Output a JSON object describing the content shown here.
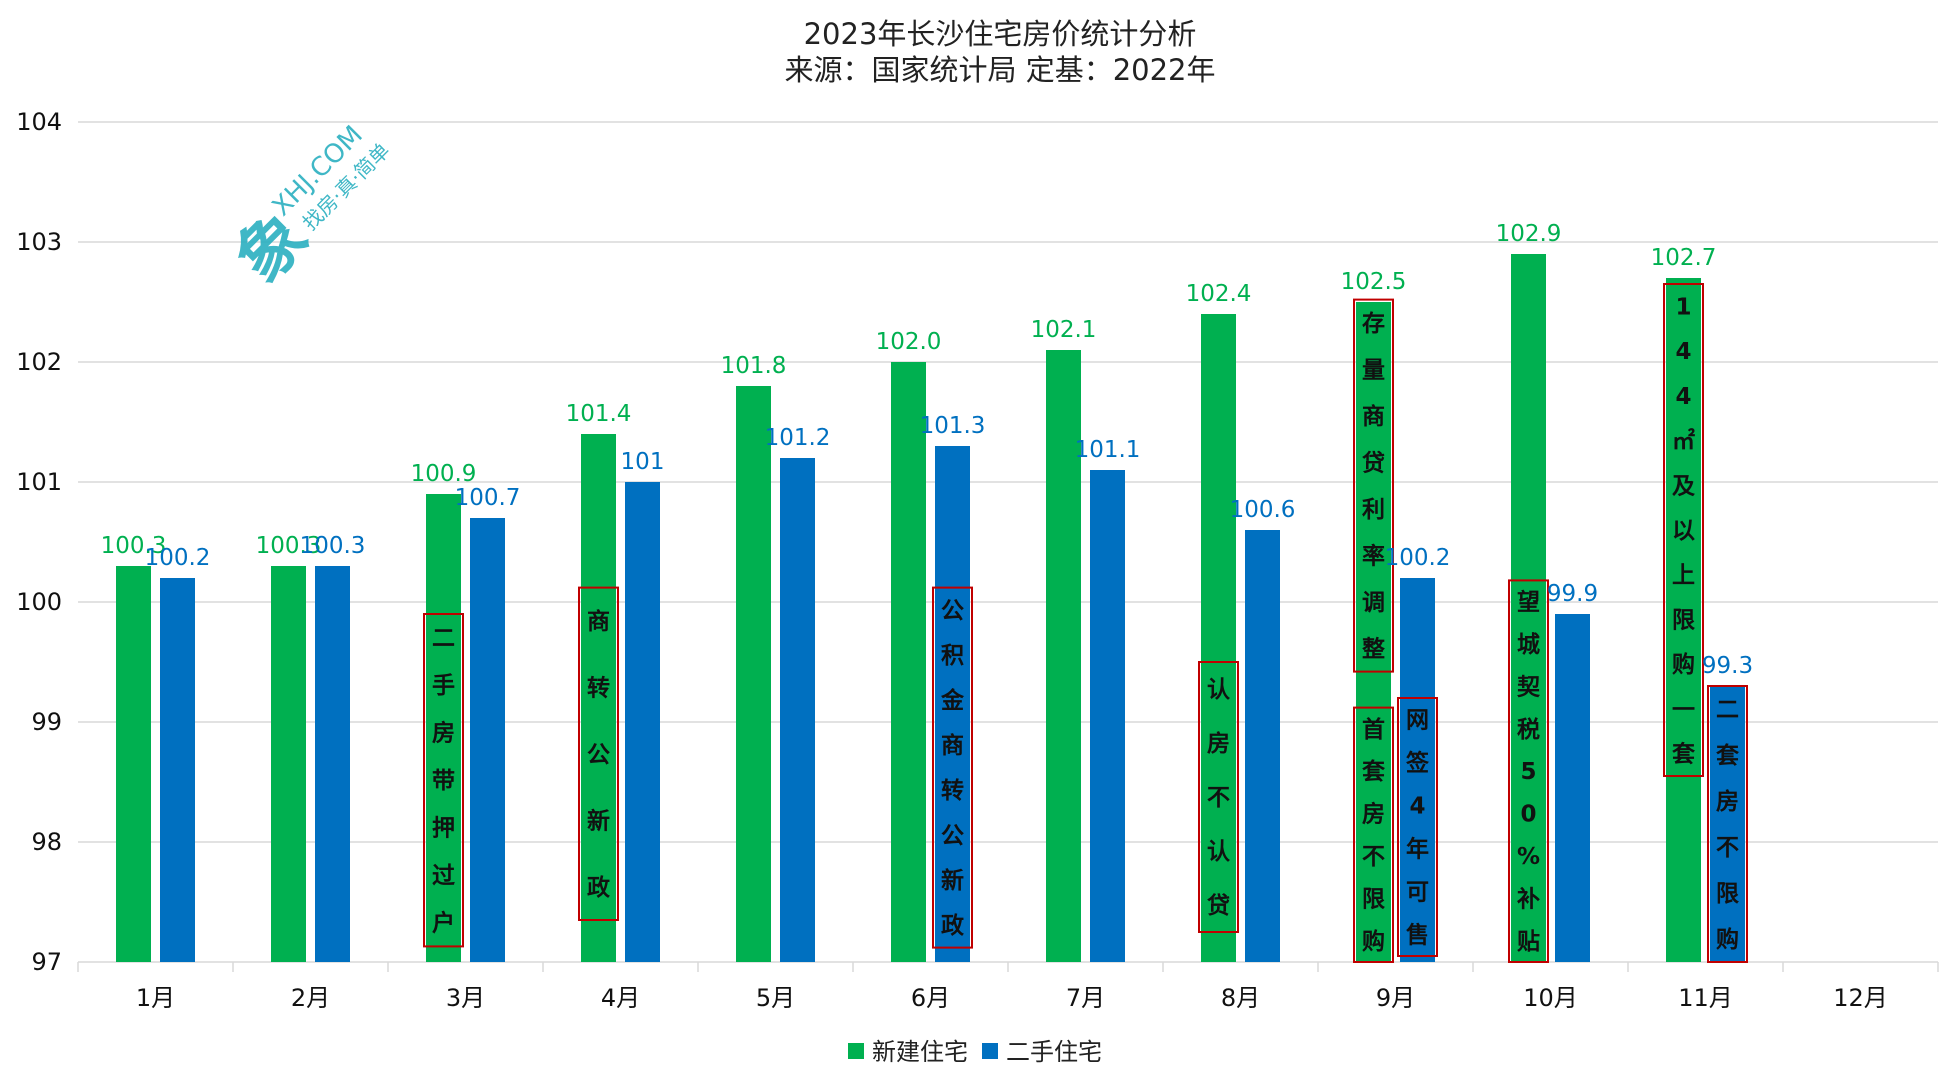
{
  "chart_data": {
    "type": "bar",
    "title": "2023年长沙住宅房价统计分析",
    "subtitle": "来源：国家统计局 定基：2022年",
    "categories": [
      "1月",
      "2月",
      "3月",
      "4月",
      "5月",
      "6月",
      "7月",
      "8月",
      "9月",
      "10月",
      "11月",
      "12月"
    ],
    "ylim": [
      97,
      104
    ],
    "yticks": [
      97,
      98,
      99,
      100,
      101,
      102,
      103,
      104
    ],
    "grid": true,
    "legend_position": "bottom",
    "series": [
      {
        "name": "新建住宅",
        "color": "#00b050",
        "values": [
          100.3,
          100.3,
          100.9,
          101.4,
          101.8,
          102.0,
          102.1,
          102.4,
          102.5,
          102.9,
          102.7,
          null
        ],
        "labels": [
          "100.3",
          "100.3",
          "100.9",
          "101.4",
          "101.8",
          "102.0",
          "102.1",
          "102.4",
          "102.5",
          "102.9",
          "102.7",
          ""
        ]
      },
      {
        "name": "二手住宅",
        "color": "#0070c0",
        "values": [
          100.2,
          100.3,
          100.7,
          101.0,
          101.2,
          101.3,
          101.1,
          100.6,
          100.2,
          99.9,
          99.3,
          null
        ],
        "labels": [
          "100.2",
          "100.3",
          "100.7",
          "101",
          "101.2",
          "101.3",
          "101.1",
          "100.6",
          "100.2",
          "99.9",
          "99.3",
          ""
        ]
      }
    ],
    "annotations": [
      {
        "category": "3月",
        "series": 0,
        "text": "二手房带押过户",
        "top": 99.9,
        "bottom": 97.13
      },
      {
        "category": "4月",
        "series": 0,
        "text": "商转公新政",
        "top": 100.12,
        "bottom": 97.35
      },
      {
        "category": "6月",
        "series": 1,
        "text": "公积金商转公新政",
        "top": 100.12,
        "bottom": 97.12
      },
      {
        "category": "8月",
        "series": 0,
        "text": "认房不认贷",
        "top": 99.5,
        "bottom": 97.25
      },
      {
        "category": "9月",
        "series": 0,
        "text": "存量商贷利率调整",
        "top": 102.52,
        "bottom": 99.42
      },
      {
        "category": "9月",
        "series": 0,
        "text": "首套房不限购",
        "top": 99.12,
        "bottom": 97.0
      },
      {
        "category": "9月",
        "series": 1,
        "text": "网签4年可售",
        "top": 99.2,
        "bottom": 97.05
      },
      {
        "category": "10月",
        "series": 0,
        "text": "望城契税50%补贴",
        "top": 100.18,
        "bottom": 97.0
      },
      {
        "category": "11月",
        "series": 0,
        "text": "144㎡及以上限购一套",
        "top": 102.65,
        "bottom": 98.55
      },
      {
        "category": "11月",
        "series": 1,
        "text": "二套房不限购",
        "top": 99.3,
        "bottom": 97.0
      }
    ]
  },
  "watermark": {
    "logo": "象",
    "site": "XHJ.COM",
    "slogan": "找房·真·简单"
  },
  "colors": {
    "grid": "#d9d9d9",
    "annotation_border": "#c00000"
  }
}
